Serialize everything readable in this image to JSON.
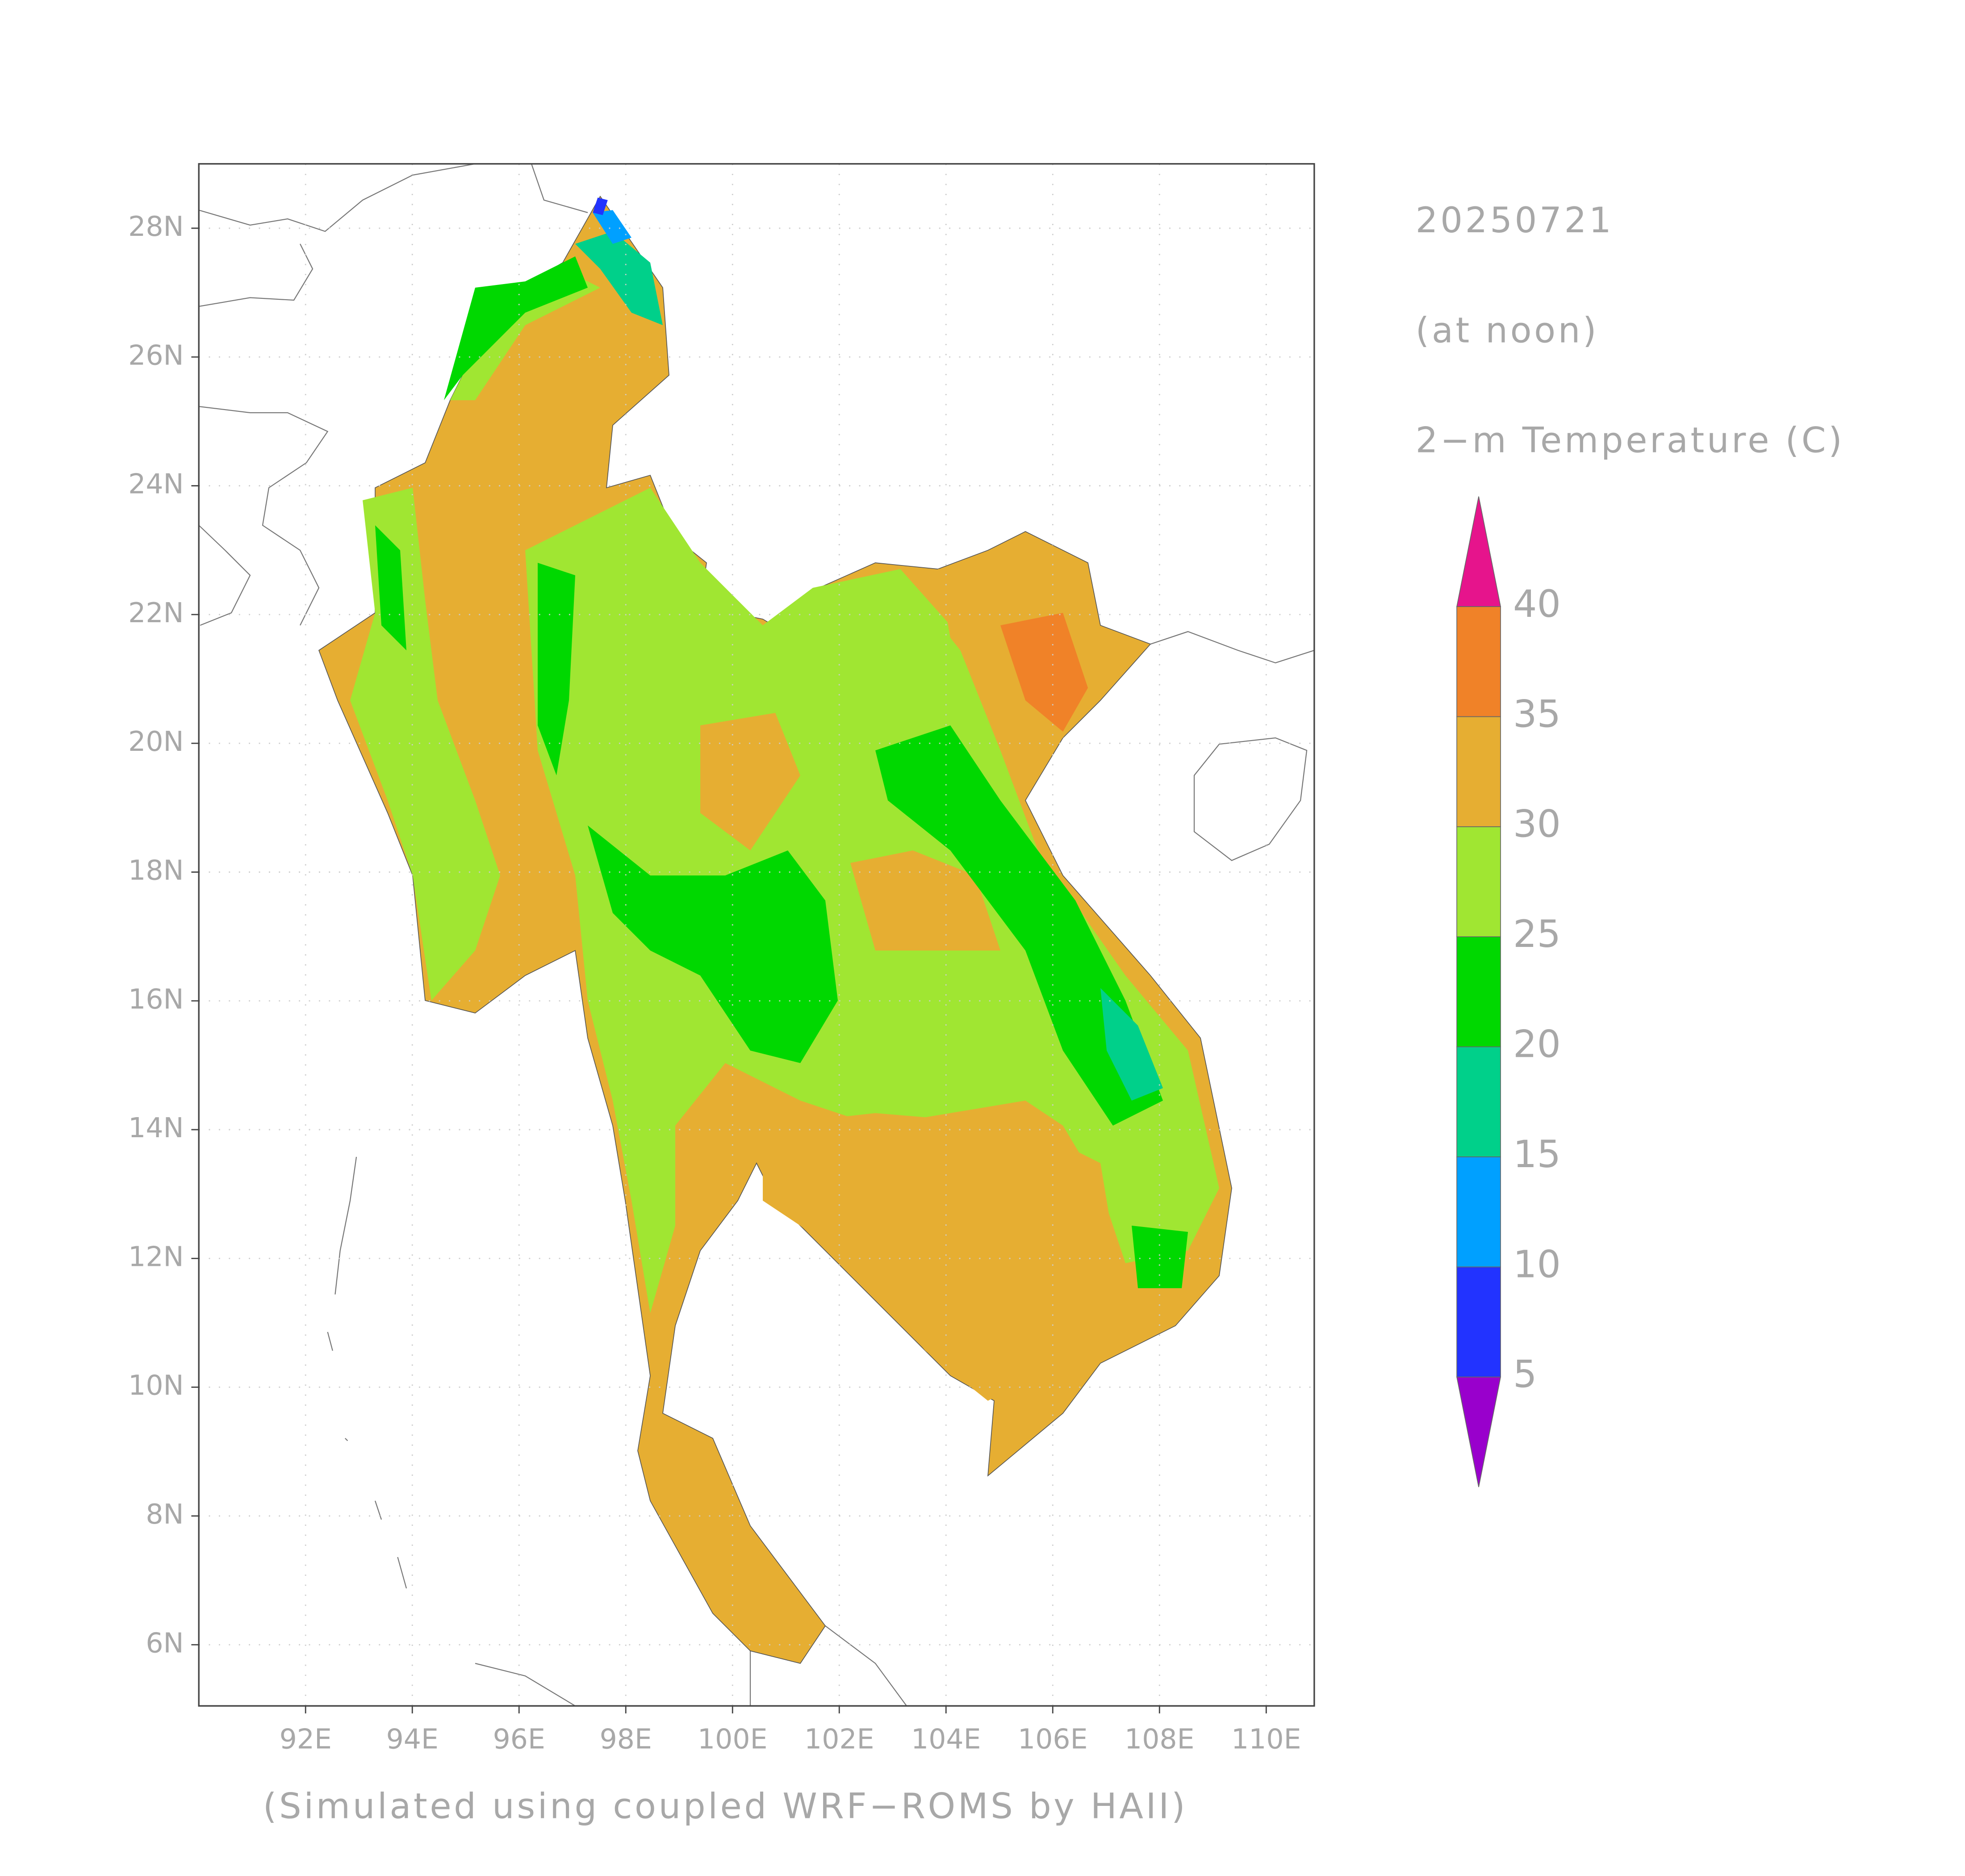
{
  "header": {
    "date": "20250721",
    "time": "(at noon)",
    "variable": "2−m Temperature (C)"
  },
  "footer": "(Simulated using coupled WRF−ROMS by HAII)",
  "map": {
    "lonlim": [
      90,
      110.9
    ],
    "latlim": [
      5.05,
      29
    ],
    "xticks": [
      {
        "value": 92,
        "label": "92E"
      },
      {
        "value": 94,
        "label": "94E"
      },
      {
        "value": 96,
        "label": "96E"
      },
      {
        "value": 98,
        "label": "98E"
      },
      {
        "value": 100,
        "label": "100E"
      },
      {
        "value": 102,
        "label": "102E"
      },
      {
        "value": 104,
        "label": "104E"
      },
      {
        "value": 106,
        "label": "106E"
      },
      {
        "value": 108,
        "label": "108E"
      },
      {
        "value": 110,
        "label": "110E"
      }
    ],
    "yticks": [
      {
        "value": 6,
        "label": "6N"
      },
      {
        "value": 8,
        "label": "8N"
      },
      {
        "value": 10,
        "label": "10N"
      },
      {
        "value": 12,
        "label": "12N"
      },
      {
        "value": 14,
        "label": "14N"
      },
      {
        "value": 16,
        "label": "16N"
      },
      {
        "value": 18,
        "label": "18N"
      },
      {
        "value": 20,
        "label": "20N"
      },
      {
        "value": 22,
        "label": "22N"
      },
      {
        "value": 24,
        "label": "24N"
      },
      {
        "value": 26,
        "label": "26N"
      },
      {
        "value": 28,
        "label": "28N"
      }
    ]
  },
  "colorbar": {
    "bounds": [
      5,
      10,
      15,
      20,
      25,
      30,
      35,
      40
    ],
    "colors": [
      "#9900cc",
      "#2233ff",
      "#00a0ff",
      "#00d08a",
      "#00d800",
      "#a0e632",
      "#e6ae32",
      "#f08228",
      "#e6148c"
    ]
  }
}
